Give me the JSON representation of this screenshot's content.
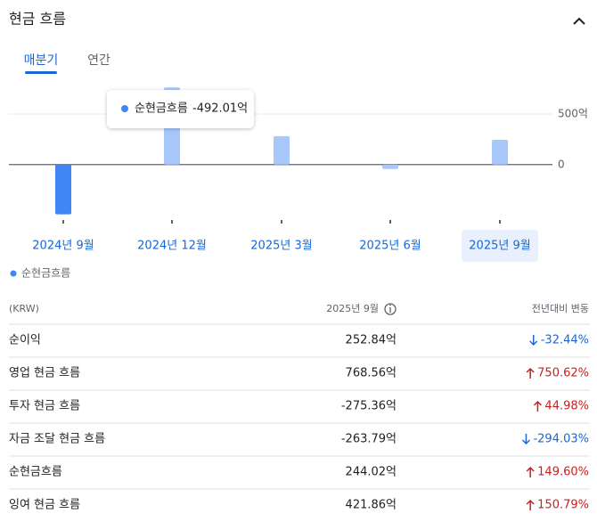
{
  "header": {
    "title": "현금 흐름"
  },
  "tabs": [
    "매분기",
    "연간"
  ],
  "chart_data": {
    "type": "bar",
    "categories": [
      "2024년 9월",
      "2024년 12월",
      "2025년 3월",
      "2025년 6월",
      "2025년 9월"
    ],
    "series": [
      {
        "name": "순현금흐름",
        "color": "#a8c7fa",
        "active_color": "#4285f4",
        "values": [
          -492.01,
          763,
          281,
          -44,
          244.02
        ],
        "value_labels": [
          "-492.01억",
          null,
          null,
          null,
          null
        ]
      }
    ],
    "ylim": [
      -530,
      790
    ],
    "yticks": [
      {
        "value": 500,
        "label": "500억"
      },
      0
    ]
  },
  "table": {
    "columns": [
      "(KRW)",
      "2025년 9월",
      "전년대비 변동"
    ],
    "rows": [
      [
        "순이익",
        "252.84억",
        "-32.44%"
      ],
      [
        "영업 현금 흐름",
        "768.56억",
        "750.62%"
      ],
      [
        "투자 현금 흐름",
        "-275.36억",
        "44.98%"
      ],
      [
        "자금 조달 현금 흐름",
        "-263.79억",
        "-294.03%"
      ],
      [
        "순현금흐름",
        "244.02억",
        "149.60%"
      ],
      [
        "잉여 현금 흐름",
        "421.86억",
        "150.79%"
      ]
    ]
  }
}
